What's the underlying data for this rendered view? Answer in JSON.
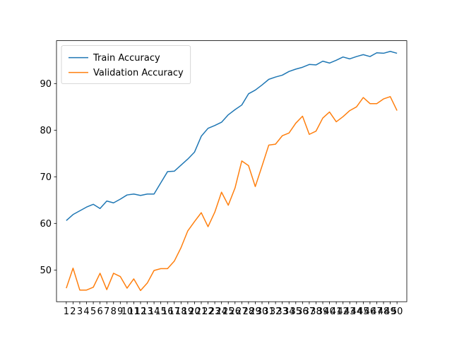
{
  "chart_data": {
    "type": "line",
    "title": "",
    "xlabel": "",
    "ylabel": "",
    "x": [
      1,
      2,
      3,
      4,
      5,
      6,
      7,
      8,
      9,
      10,
      11,
      12,
      13,
      14,
      15,
      16,
      17,
      18,
      19,
      20,
      21,
      22,
      23,
      24,
      25,
      26,
      27,
      28,
      29,
      30,
      31,
      32,
      33,
      34,
      35,
      36,
      37,
      38,
      39,
      40,
      41,
      42,
      43,
      44,
      45,
      46,
      47,
      48,
      49,
      50
    ],
    "x_tick_labels": [
      "1",
      "2",
      "3",
      "4",
      "5",
      "6",
      "7",
      "8",
      "9",
      "10",
      "11",
      "12",
      "13",
      "14",
      "15",
      "16",
      "17",
      "18",
      "19",
      "20",
      "21",
      "22",
      "23",
      "24",
      "25",
      "26",
      "27",
      "28",
      "29",
      "30",
      "31",
      "32",
      "33",
      "34",
      "35",
      "36",
      "37",
      "38",
      "39",
      "40",
      "41",
      "42",
      "43",
      "44",
      "45",
      "46",
      "47",
      "48",
      "49",
      "50"
    ],
    "xlim": [
      -0.45,
      51.45
    ],
    "ylim": [
      43.2,
      99.2
    ],
    "y_ticks": [
      50,
      60,
      70,
      80,
      90
    ],
    "y_tick_labels": [
      "50",
      "60",
      "70",
      "80",
      "90"
    ],
    "grid": false,
    "legend_position": "upper-left",
    "series": [
      {
        "name": "Train Accuracy",
        "color": "#1f77b4",
        "values": [
          60.6,
          61.9,
          62.7,
          63.5,
          64.1,
          63.2,
          64.8,
          64.4,
          65.2,
          66.1,
          66.3,
          66.0,
          66.3,
          66.3,
          68.7,
          71.1,
          71.2,
          72.5,
          73.8,
          75.3,
          78.7,
          80.4,
          81.0,
          81.7,
          83.3,
          84.4,
          85.4,
          87.8,
          88.6,
          89.7,
          90.9,
          91.4,
          91.8,
          92.6,
          93.1,
          93.5,
          94.1,
          94.0,
          94.8,
          94.4,
          95.0,
          95.7,
          95.3,
          95.8,
          96.2,
          95.8,
          96.6,
          96.5,
          96.9,
          96.5
        ]
      },
      {
        "name": "Validation Accuracy",
        "color": "#ff7f0e",
        "values": [
          46.1,
          50.4,
          45.7,
          45.7,
          46.3,
          49.3,
          45.8,
          49.3,
          48.6,
          46.1,
          48.1,
          45.6,
          47.2,
          49.9,
          50.3,
          50.3,
          51.9,
          54.8,
          58.4,
          60.4,
          62.3,
          59.3,
          62.4,
          66.7,
          63.9,
          67.6,
          73.4,
          72.4,
          67.9,
          72.3,
          76.8,
          77.0,
          78.8,
          79.4,
          81.5,
          83.0,
          79.1,
          79.8,
          82.6,
          83.9,
          81.8,
          82.9,
          84.2,
          85.0,
          87.0,
          85.7,
          85.7,
          86.7,
          87.2,
          84.2
        ]
      }
    ]
  }
}
